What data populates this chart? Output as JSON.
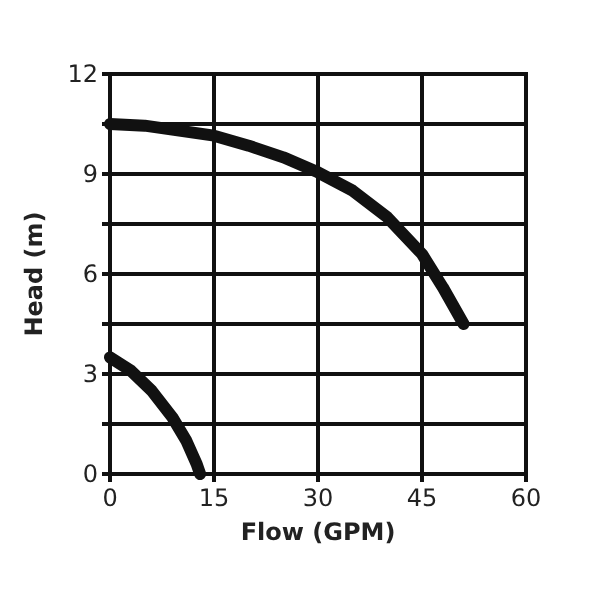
{
  "chart_data": {
    "type": "line",
    "xlabel": "Flow (GPM)",
    "ylabel": "Head (m)",
    "xlim": [
      0,
      60
    ],
    "ylim": [
      0,
      12
    ],
    "xticks": [
      0,
      15,
      30,
      45,
      60
    ],
    "yticks": [
      0,
      {
        "value": 1.5,
        "label": null
      },
      3,
      {
        "value": 4.5,
        "label": null
      },
      6,
      {
        "value": 7.5,
        "label": null
      },
      9,
      {
        "value": 10.5,
        "label": null
      },
      12
    ],
    "grid": true,
    "marker": "none",
    "line_style": "solid",
    "series": [
      {
        "color": "#111111",
        "x": [
          0,
          5,
          10,
          15,
          20,
          25,
          30,
          35,
          40,
          45,
          48,
          51
        ],
        "values": [
          10.5,
          10.45,
          10.3,
          10.15,
          9.85,
          9.5,
          9.05,
          8.5,
          7.7,
          6.6,
          5.6,
          4.5
        ]
      },
      {
        "color": "#111111",
        "x": [
          0,
          3,
          6,
          9,
          11,
          12.5,
          13
        ],
        "values": [
          3.5,
          3.1,
          2.5,
          1.7,
          1.0,
          0.3,
          0
        ]
      }
    ]
  }
}
